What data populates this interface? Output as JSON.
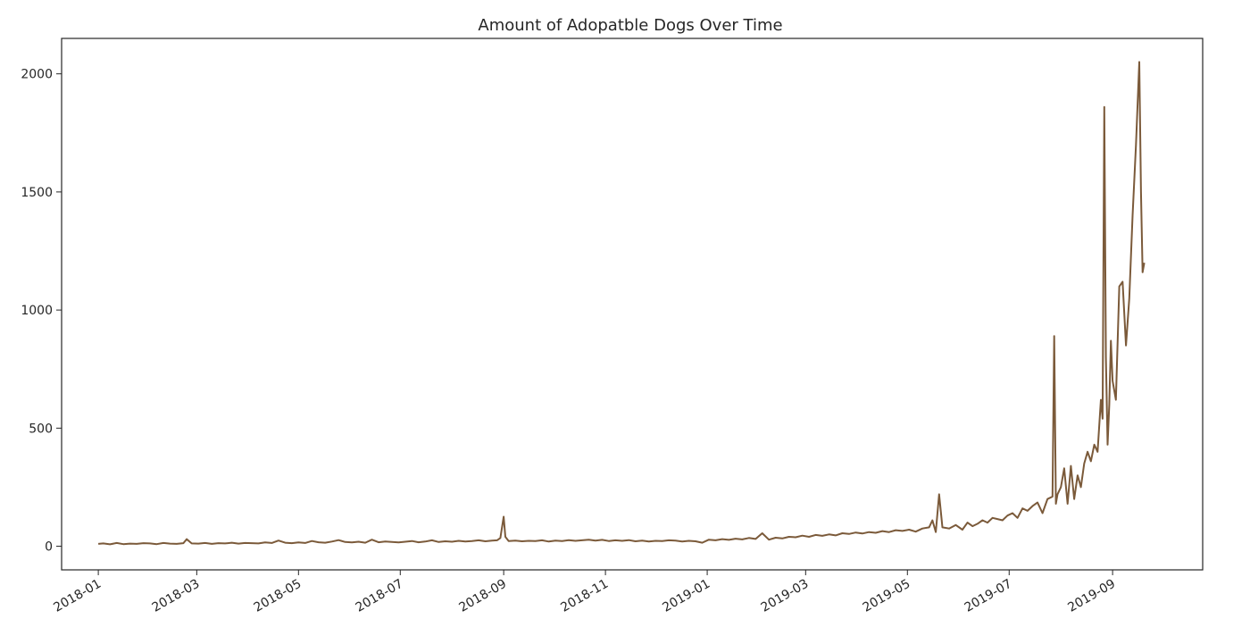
{
  "chart_data": {
    "type": "line",
    "title": "Amount of Adopatble Dogs Over Time",
    "xlabel": "",
    "ylabel": "",
    "x_type": "date",
    "xlim": [
      "2017-12-10",
      "2019-10-25"
    ],
    "ylim": [
      -100,
      2150
    ],
    "grid": false,
    "legend": "none",
    "line_color": "#7b5a3a",
    "x_ticks": [
      "2018-01",
      "2018-03",
      "2018-05",
      "2018-07",
      "2018-09",
      "2018-11",
      "2019-01",
      "2019-03",
      "2019-05",
      "2019-07",
      "2019-09"
    ],
    "y_ticks": [
      0,
      500,
      1000,
      1500,
      2000
    ],
    "series": [
      {
        "x": [
          "2018-01-01",
          "2018-01-04",
          "2018-01-08",
          "2018-01-12",
          "2018-01-16",
          "2018-01-20",
          "2018-01-24",
          "2018-01-28",
          "2018-02-01",
          "2018-02-05",
          "2018-02-09",
          "2018-02-13",
          "2018-02-17",
          "2018-02-21",
          "2018-02-23",
          "2018-02-26",
          "2018-03-02",
          "2018-03-06",
          "2018-03-10",
          "2018-03-14",
          "2018-03-18",
          "2018-03-22",
          "2018-03-26",
          "2018-03-30",
          "2018-04-03",
          "2018-04-07",
          "2018-04-11",
          "2018-04-15",
          "2018-04-19",
          "2018-04-23",
          "2018-04-27",
          "2018-05-01",
          "2018-05-05",
          "2018-05-09",
          "2018-05-13",
          "2018-05-17",
          "2018-05-21",
          "2018-05-25",
          "2018-05-29",
          "2018-06-02",
          "2018-06-06",
          "2018-06-10",
          "2018-06-14",
          "2018-06-18",
          "2018-06-22",
          "2018-06-26",
          "2018-06-30",
          "2018-07-04",
          "2018-07-08",
          "2018-07-12",
          "2018-07-16",
          "2018-07-20",
          "2018-07-24",
          "2018-07-28",
          "2018-08-01",
          "2018-08-05",
          "2018-08-09",
          "2018-08-13",
          "2018-08-17",
          "2018-08-21",
          "2018-08-25",
          "2018-08-28",
          "2018-08-30",
          "2018-09-01",
          "2018-09-02",
          "2018-09-04",
          "2018-09-08",
          "2018-09-12",
          "2018-09-16",
          "2018-09-20",
          "2018-09-24",
          "2018-09-28",
          "2018-10-02",
          "2018-10-06",
          "2018-10-10",
          "2018-10-14",
          "2018-10-18",
          "2018-10-22",
          "2018-10-26",
          "2018-10-30",
          "2018-11-03",
          "2018-11-07",
          "2018-11-11",
          "2018-11-15",
          "2018-11-19",
          "2018-11-23",
          "2018-11-27",
          "2018-12-01",
          "2018-12-05",
          "2018-12-09",
          "2018-12-13",
          "2018-12-17",
          "2018-12-21",
          "2018-12-25",
          "2018-12-29",
          "2019-01-02",
          "2019-01-06",
          "2019-01-10",
          "2019-01-14",
          "2019-01-18",
          "2019-01-22",
          "2019-01-26",
          "2019-01-30",
          "2019-02-03",
          "2019-02-07",
          "2019-02-11",
          "2019-02-15",
          "2019-02-19",
          "2019-02-23",
          "2019-02-27",
          "2019-03-03",
          "2019-03-07",
          "2019-03-11",
          "2019-03-15",
          "2019-03-19",
          "2019-03-23",
          "2019-03-27",
          "2019-03-31",
          "2019-04-04",
          "2019-04-08",
          "2019-04-12",
          "2019-04-16",
          "2019-04-20",
          "2019-04-24",
          "2019-04-28",
          "2019-05-02",
          "2019-05-06",
          "2019-05-10",
          "2019-05-14",
          "2019-05-16",
          "2019-05-18",
          "2019-05-20",
          "2019-05-22",
          "2019-05-26",
          "2019-05-30",
          "2019-06-03",
          "2019-06-06",
          "2019-06-09",
          "2019-06-12",
          "2019-06-15",
          "2019-06-18",
          "2019-06-21",
          "2019-06-24",
          "2019-06-27",
          "2019-06-30",
          "2019-07-03",
          "2019-07-06",
          "2019-07-09",
          "2019-07-12",
          "2019-07-15",
          "2019-07-18",
          "2019-07-21",
          "2019-07-24",
          "2019-07-27",
          "2019-07-28",
          "2019-07-29",
          "2019-07-30",
          "2019-08-01",
          "2019-08-03",
          "2019-08-05",
          "2019-08-07",
          "2019-08-09",
          "2019-08-11",
          "2019-08-13",
          "2019-08-15",
          "2019-08-17",
          "2019-08-19",
          "2019-08-21",
          "2019-08-23",
          "2019-08-25",
          "2019-08-26",
          "2019-08-27",
          "2019-08-28",
          "2019-08-29",
          "2019-08-30",
          "2019-08-31",
          "2019-09-01",
          "2019-09-03",
          "2019-09-05",
          "2019-09-07",
          "2019-09-09",
          "2019-09-11",
          "2019-09-13",
          "2019-09-15",
          "2019-09-17",
          "2019-09-18",
          "2019-09-19",
          "2019-09-20"
        ],
        "values": [
          10,
          12,
          8,
          14,
          9,
          11,
          10,
          13,
          12,
          9,
          14,
          11,
          10,
          13,
          30,
          12,
          11,
          14,
          10,
          13,
          12,
          15,
          11,
          14,
          13,
          12,
          16,
          14,
          24,
          15,
          13,
          16,
          14,
          22,
          17,
          15,
          20,
          26,
          18,
          16,
          19,
          15,
          28,
          17,
          20,
          18,
          16,
          19,
          22,
          17,
          20,
          25,
          18,
          21,
          19,
          23,
          20,
          22,
          25,
          21,
          24,
          25,
          35,
          125,
          40,
          22,
          24,
          21,
          23,
          22,
          25,
          20,
          24,
          22,
          26,
          23,
          25,
          28,
          24,
          27,
          22,
          25,
          23,
          26,
          21,
          24,
          20,
          23,
          22,
          25,
          24,
          20,
          23,
          21,
          15,
          28,
          25,
          30,
          27,
          32,
          29,
          35,
          31,
          55,
          28,
          36,
          33,
          40,
          38,
          45,
          40,
          48,
          44,
          50,
          46,
          55,
          52,
          58,
          54,
          60,
          57,
          64,
          60,
          68,
          65,
          70,
          62,
          75,
          80,
          110,
          60,
          220,
          80,
          75,
          90,
          70,
          100,
          85,
          95,
          110,
          100,
          120,
          115,
          110,
          130,
          140,
          120,
          160,
          150,
          170,
          185,
          140,
          200,
          210,
          890,
          180,
          220,
          250,
          330,
          180,
          340,
          200,
          300,
          250,
          350,
          400,
          360,
          430,
          400,
          620,
          540,
          1860,
          800,
          430,
          600,
          870,
          700,
          620,
          1100,
          1120,
          850,
          1050,
          1400,
          1700,
          2050,
          1500,
          1160,
          1200
        ]
      }
    ]
  }
}
